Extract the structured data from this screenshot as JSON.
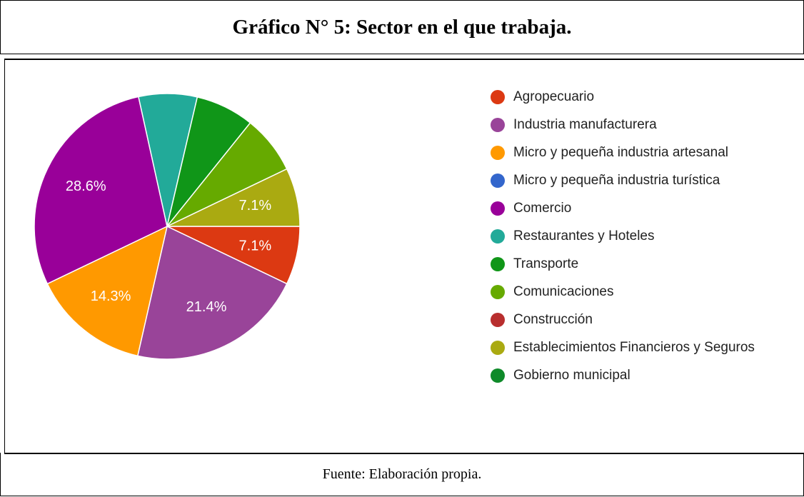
{
  "header": {
    "title": "Gráfico N° 5: Sector en el que trabaja."
  },
  "chart_data": {
    "type": "pie",
    "categories": [
      "Agropecuario",
      "Industria manufacturera",
      "Micro y pequeña industria artesanal",
      "Micro y pequeña industria turística",
      "Comercio",
      "Restaurantes y Hoteles",
      "Transporte",
      "Comunicaciones",
      "Construcción",
      "Establecimientos Financieros y Seguros",
      "Gobierno municipal"
    ],
    "values": [
      7.1,
      21.4,
      14.3,
      0,
      28.6,
      7.1,
      7.1,
      7.1,
      0,
      7.1,
      0
    ],
    "value_labels": [
      "7.1%",
      "21.4%",
      "14.3%",
      null,
      "28.6%",
      null,
      null,
      null,
      null,
      "7.1%",
      null
    ],
    "colors": [
      "#dc3912",
      "#994499",
      "#ff9900",
      "#3366cc",
      "#990099",
      "#22aa99",
      "#109618",
      "#66aa00",
      "#b82e2e",
      "#aaaa11",
      "#0f8a2a"
    ],
    "legend": "right"
  },
  "footer": {
    "source": "Fuente: Elaboración propia."
  }
}
